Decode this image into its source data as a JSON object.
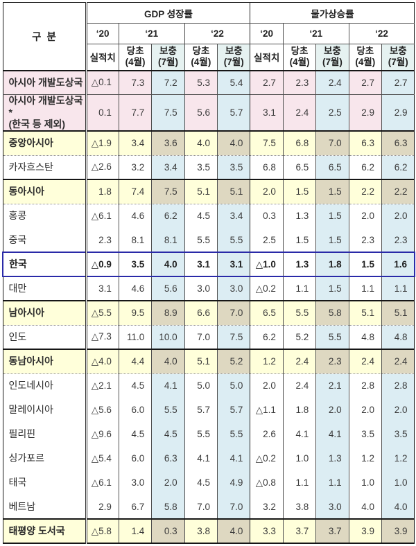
{
  "colors": {
    "pink": "#f8e6ec",
    "blue": "#dcedf3",
    "yellow": "#ffffda",
    "tan": "#ded8c1",
    "header_highlight": "#e6f2f1",
    "red": "#e03131",
    "navy": "#2a2aa8"
  },
  "header": {
    "corner": "구  분",
    "groups": [
      {
        "title": "GDP 성장률"
      },
      {
        "title": "물가상승률"
      }
    ],
    "years": [
      "‘20",
      "‘21",
      "‘22"
    ],
    "sub": {
      "actual": "실적치",
      "initial": {
        "line1": "당초",
        "line2": "(4월)"
      },
      "revised": {
        "line1": "보충",
        "line2": "(7월)"
      }
    }
  },
  "rows": [
    {
      "name": "asia-developing",
      "label": "아시아 개발도상국",
      "type": "summary",
      "sep": "none",
      "gdp": [
        "△0.1",
        "7.3",
        "7.2",
        "5.3",
        "5.4"
      ],
      "cpi": [
        "2.7",
        "2.3",
        "2.4",
        "2.7",
        "2.7"
      ]
    },
    {
      "name": "asia-developing-excl-korea",
      "label": "아시아 개발도상국*",
      "label2": "(한국 등 제외)",
      "type": "summary",
      "sep": "thin",
      "gdp": [
        "0.1",
        "7.7",
        "7.5",
        "5.6",
        "5.7"
      ],
      "cpi": [
        "3.1",
        "2.4",
        "2.5",
        "2.9",
        "2.9"
      ]
    },
    {
      "name": "central-asia",
      "label": "중앙아시아",
      "type": "region",
      "sep": "thick",
      "gdp": [
        "△1.9",
        "3.4",
        "3.6",
        "4.0",
        "4.0"
      ],
      "cpi": [
        "7.5",
        "6.8",
        "7.0",
        "6.3",
        "6.3"
      ]
    },
    {
      "name": "kazakhstan",
      "label": "카자흐스탄",
      "type": "country",
      "sep": "dotted",
      "gdp": [
        "△2.6",
        "3.2",
        "3.4",
        "3.5",
        "3.5"
      ],
      "cpi": [
        "6.8",
        "6.5",
        "6.5",
        "6.2",
        "6.2"
      ]
    },
    {
      "name": "east-asia",
      "label": "동아시아",
      "type": "region",
      "sep": "thick",
      "gdp": [
        "1.8",
        "7.4",
        "7.5",
        "5.1",
        "5.1"
      ],
      "cpi": [
        "2.0",
        "1.5",
        "1.5",
        "2.2",
        "2.2"
      ]
    },
    {
      "name": "hong-kong",
      "label": "홍콩",
      "type": "country",
      "sep": "dotted",
      "gdp": [
        "△6.1",
        "4.6",
        "6.2",
        "4.5",
        "3.4"
      ],
      "cpi": [
        "0.3",
        "1.3",
        "1.5",
        "2.0",
        "2.0"
      ]
    },
    {
      "name": "china",
      "label": "중국",
      "type": "country",
      "sep": "none",
      "gdp": [
        "2.3",
        "8.1",
        "8.1",
        "5.5",
        "5.5"
      ],
      "cpi": [
        "2.5",
        "1.5",
        "1.5",
        "2.3",
        "2.3"
      ]
    },
    {
      "name": "korea",
      "label": "한국",
      "type": "korea",
      "sep": "none",
      "gdp": [
        "△0.9",
        "3.5",
        "4.0",
        "3.1",
        "3.1"
      ],
      "cpi": [
        "△1.0",
        "1.3",
        "1.8",
        "1.5",
        "1.6"
      ]
    },
    {
      "name": "taiwan",
      "label": "대만",
      "type": "country",
      "sep": "none",
      "gdp": [
        "3.1",
        "4.6",
        "5.6",
        "3.0",
        "3.0"
      ],
      "cpi": [
        "△0.2",
        "1.1",
        "1.5",
        "1.1",
        "1.1"
      ]
    },
    {
      "name": "south-asia",
      "label": "남아시아",
      "type": "region",
      "sep": "thick",
      "gdp": [
        "△5.5",
        "9.5",
        "8.9",
        "6.6",
        "7.0"
      ],
      "cpi": [
        "6.5",
        "5.5",
        "5.8",
        "5.1",
        "5.1"
      ]
    },
    {
      "name": "india",
      "label": "인도",
      "type": "country",
      "sep": "dotted",
      "gdp": [
        "△7.3",
        "11.0",
        "10.0",
        "7.0",
        "7.5"
      ],
      "cpi": [
        "6.2",
        "5.2",
        "5.5",
        "4.8",
        "4.8"
      ]
    },
    {
      "name": "southeast-asia",
      "label": "동남아시아",
      "type": "region",
      "sep": "thick",
      "gdp": [
        "△4.0",
        "4.4",
        "4.0",
        "5.1",
        "5.2"
      ],
      "cpi": [
        "1.2",
        "2.4",
        "2.3",
        "2.4",
        "2.4"
      ]
    },
    {
      "name": "indonesia",
      "label": "인도네시아",
      "type": "country",
      "sep": "dotted",
      "gdp": [
        "△2.1",
        "4.5",
        "4.1",
        "5.0",
        "5.0"
      ],
      "cpi": [
        "2.0",
        "2.4",
        "2.1",
        "2.8",
        "2.8"
      ]
    },
    {
      "name": "malaysia",
      "label": "말레이시아",
      "type": "country",
      "sep": "none",
      "gdp": [
        "△5.6",
        "6.0",
        "5.5",
        "5.7",
        "5.7"
      ],
      "cpi": [
        "△1.1",
        "1.8",
        "2.0",
        "2.0",
        "2.0"
      ]
    },
    {
      "name": "philippines",
      "label": "필리핀",
      "type": "country",
      "sep": "none",
      "gdp": [
        "△9.6",
        "4.5",
        "4.5",
        "5.5",
        "5.5"
      ],
      "cpi": [
        "2.6",
        "4.1",
        "4.1",
        "3.5",
        "3.5"
      ]
    },
    {
      "name": "singapore",
      "label": "싱가포르",
      "type": "country",
      "sep": "none",
      "gdp": [
        "△5.4",
        "6.0",
        "6.3",
        "4.1",
        "4.1"
      ],
      "cpi": [
        "△0.2",
        "1.0",
        "1.3",
        "1.2",
        "1.2"
      ]
    },
    {
      "name": "thailand",
      "label": "태국",
      "type": "country",
      "sep": "none",
      "gdp": [
        "△6.1",
        "3.0",
        "2.0",
        "4.5",
        "4.9"
      ],
      "cpi": [
        "△0.8",
        "1.1",
        "1.1",
        "1.0",
        "1.0"
      ]
    },
    {
      "name": "vietnam",
      "label": "베트남",
      "type": "country",
      "sep": "none",
      "gdp": [
        "2.9",
        "6.7",
        "5.8",
        "7.0",
        "7.0"
      ],
      "cpi": [
        "3.2",
        "3.8",
        "3.0",
        "4.0",
        "4.0"
      ]
    },
    {
      "name": "pacific-islands",
      "label": "태평양 도서국",
      "type": "region",
      "sep": "thick",
      "gdp": [
        "△5.8",
        "1.4",
        "0.3",
        "3.8",
        "4.0"
      ],
      "cpi": [
        "3.3",
        "3.7",
        "3.7",
        "3.9",
        "3.9"
      ]
    }
  ]
}
